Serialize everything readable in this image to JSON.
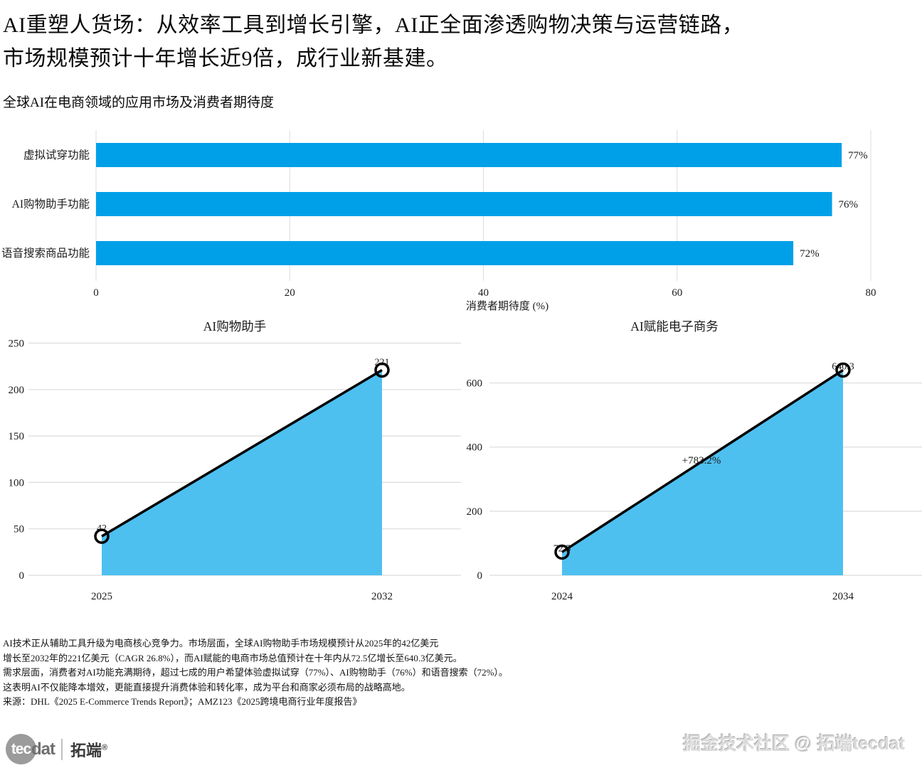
{
  "header": {
    "title_line1": "AI重塑人货场：从效率工具到增长引擎，AI正全面渗透购物决策与运营链路，",
    "title_line2": "市场规模预计十年增长近9倍，成行业新基建。",
    "subtitle": "全球AI在电商领域的应用市场及消费者期待度"
  },
  "colors": {
    "bar": "#00a0e8",
    "area_fill": "#4dc0f0",
    "line": "#000000",
    "grid": "#dcdcdc",
    "text": "#1c1c1c"
  },
  "chart_data": [
    {
      "type": "bar",
      "orientation": "horizontal",
      "title": "",
      "categories": [
        "虚拟试穿功能",
        "AI购物助手功能",
        "语音搜索商品功能"
      ],
      "values": [
        77,
        76,
        72
      ],
      "value_labels": [
        "77%",
        "76%",
        "72%"
      ],
      "xlabel": "消费者期待度 (%)",
      "xlim": [
        0,
        80
      ],
      "xticks": [
        0,
        20,
        40,
        60,
        80
      ],
      "grid": true,
      "legend": false
    },
    {
      "type": "area",
      "title": "AI购物助手",
      "x": [
        "2025",
        "2032"
      ],
      "values": [
        42,
        221
      ],
      "point_labels": [
        "42",
        "221"
      ],
      "ylim": [
        0,
        250
      ],
      "yticks": [
        0,
        50,
        100,
        150,
        200,
        250
      ],
      "grid": true,
      "legend": false
    },
    {
      "type": "area",
      "title": "AI赋能电子商务",
      "x": [
        "2024",
        "2034"
      ],
      "values": [
        72.5,
        640.3
      ],
      "point_labels": [
        "72.5",
        "640.3"
      ],
      "annotation": "+783.2%",
      "ylim": [
        0,
        650
      ],
      "yticks": [
        0,
        200,
        400,
        600
      ],
      "grid": true,
      "legend": false
    }
  ],
  "footer": {
    "lines": [
      "AI技术正从辅助工具升级为电商核心竞争力。市场层面，全球AI购物助手市场规模预计从2025年的42亿美元",
      "增长至2032年的221亿美元（CAGR 26.8%），而AI赋能的电商市场总值预计在十年内从72.5亿增长至640.3亿美元。",
      "需求层面，消费者对AI功能充满期待，超过七成的用户希望体验虚拟试穿（77%）、AI购物助手（76%）和语音搜索（72%）。",
      "这表明AI不仅能降本增效，更能直接提升消费体验和转化率，成为平台和商家必须布局的战略高地。",
      "来源：DHL《2025 E-Commerce Trends Report》；AMZ123《2025跨境电商行业年度报告》"
    ]
  },
  "branding": {
    "logo_circle_text": "tec",
    "logo_suffix": "dat",
    "logo_cn": "拓端",
    "logo_reg": "®",
    "watermark": "掘金技术社区 @ 拓端tecdat"
  }
}
